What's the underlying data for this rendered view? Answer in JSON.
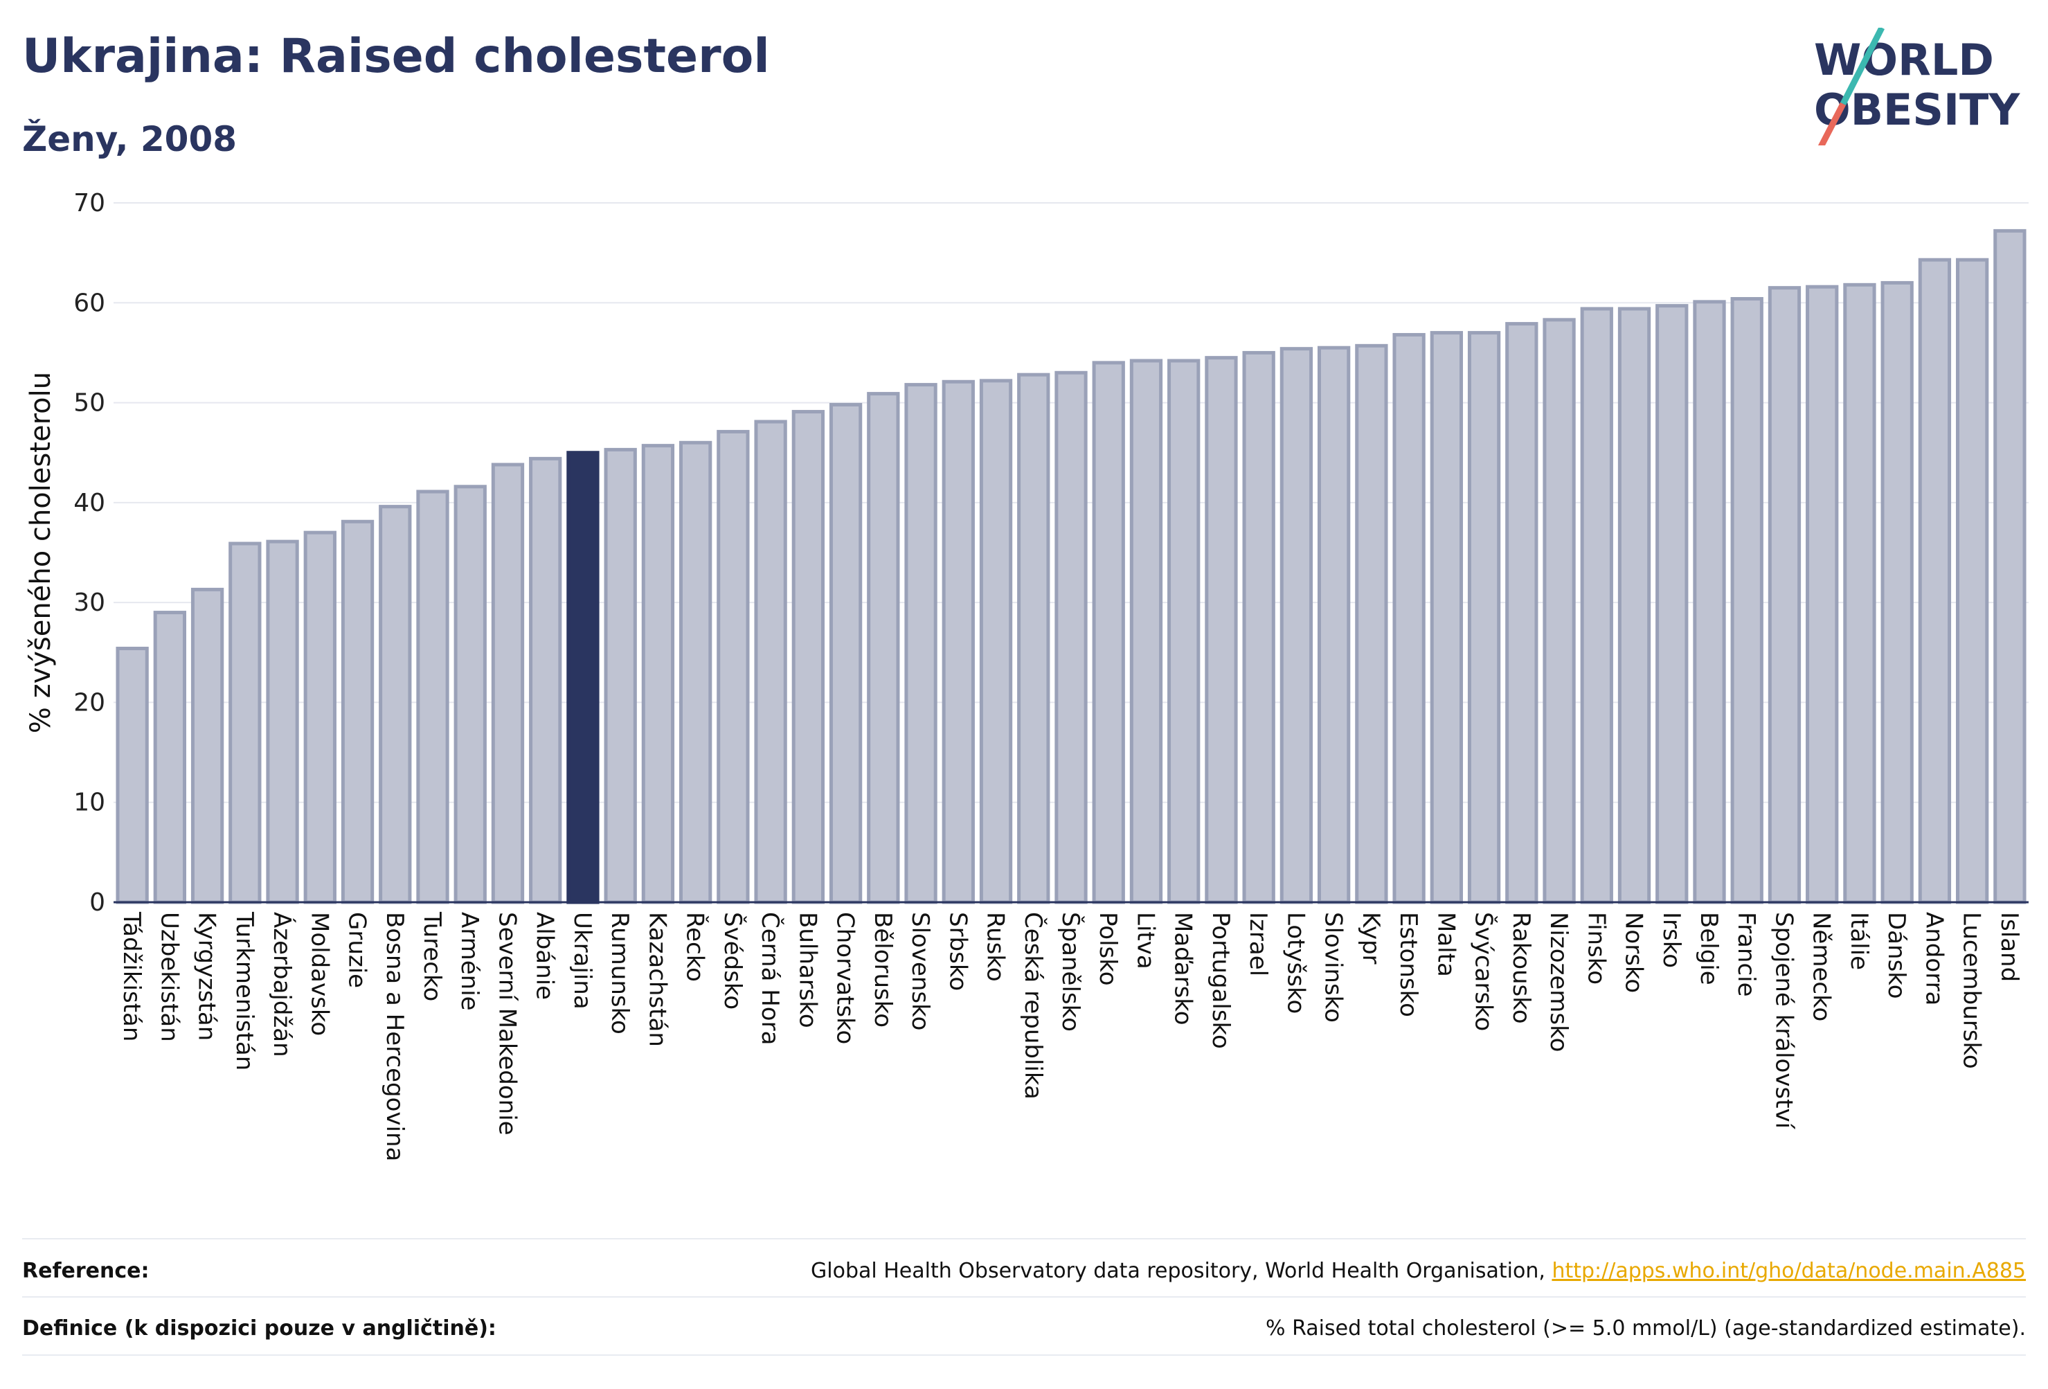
{
  "title": "Ukrajina: Raised cholesterol",
  "subtitle": "Ženy, 2008",
  "logo": {
    "line1": "WORLD",
    "line2": "OBESITY"
  },
  "footer": {
    "reference_label": "Reference:",
    "reference_text": "Global Health Observatory data repository, World Health Organisation, ",
    "reference_link": "http://apps.who.int/gho/data/node.main.A885",
    "definition_label": "Definice (k dispozici pouze v angličtině):",
    "definition_text": "% Raised total cholesterol (>= 5.0 mmol/L) (age-standardized estimate)."
  },
  "colors": {
    "bar": "#bfc3d2",
    "bar_stroke": "#9aa1b8",
    "highlight": "#2a3560",
    "grid": "#e6e8ef"
  },
  "chart_data": {
    "type": "bar",
    "ylabel": "% zvýšeného cholesterolu",
    "ylim": [
      0,
      70
    ],
    "yticks": [
      0,
      10,
      20,
      30,
      40,
      50,
      60,
      70
    ],
    "grid": true,
    "highlight": "Ukrajina",
    "categories": [
      "Tádžikistán",
      "Uzbekistán",
      "Kyrgyzstán",
      "Turkmenistán",
      "Ázerbajdžán",
      "Moldavsko",
      "Gruzie",
      "Bosna a Hercegovina",
      "Turecko",
      "Arménie",
      "Severní Makedonie",
      "Albánie",
      "Ukrajina",
      "Rumunsko",
      "Kazachstán",
      "Řecko",
      "Švédsko",
      "Černá Hora",
      "Bulharsko",
      "Chorvatsko",
      "Bělorusko",
      "Slovensko",
      "Srbsko",
      "Rusko",
      "Česká republika",
      "Španělsko",
      "Polsko",
      "Litva",
      "Maďarsko",
      "Portugalsko",
      "Izrael",
      "Lotyšsko",
      "Slovinsko",
      "Kypr",
      "Estonsko",
      "Malta",
      "Švýcarsko",
      "Rakousko",
      "Nizozemsko",
      "Finsko",
      "Norsko",
      "Irsko",
      "Belgie",
      "Francie",
      "Spojené království",
      "Německo",
      "Itálie",
      "Dánsko",
      "Andorra",
      "Lucembursko",
      "Island"
    ],
    "values": [
      25.4,
      29.0,
      31.3,
      35.9,
      36.1,
      37.0,
      38.1,
      39.6,
      41.1,
      41.6,
      43.8,
      44.4,
      45.0,
      45.3,
      45.7,
      46.0,
      47.1,
      48.1,
      49.1,
      49.8,
      50.9,
      51.8,
      52.1,
      52.2,
      52.8,
      53.0,
      54.0,
      54.2,
      54.2,
      54.5,
      55.0,
      55.4,
      55.5,
      55.7,
      56.8,
      57.0,
      57.0,
      57.9,
      58.3,
      59.4,
      59.4,
      59.7,
      60.1,
      60.4,
      61.5,
      61.6,
      61.8,
      62.0,
      64.3,
      64.3,
      67.2
    ]
  }
}
